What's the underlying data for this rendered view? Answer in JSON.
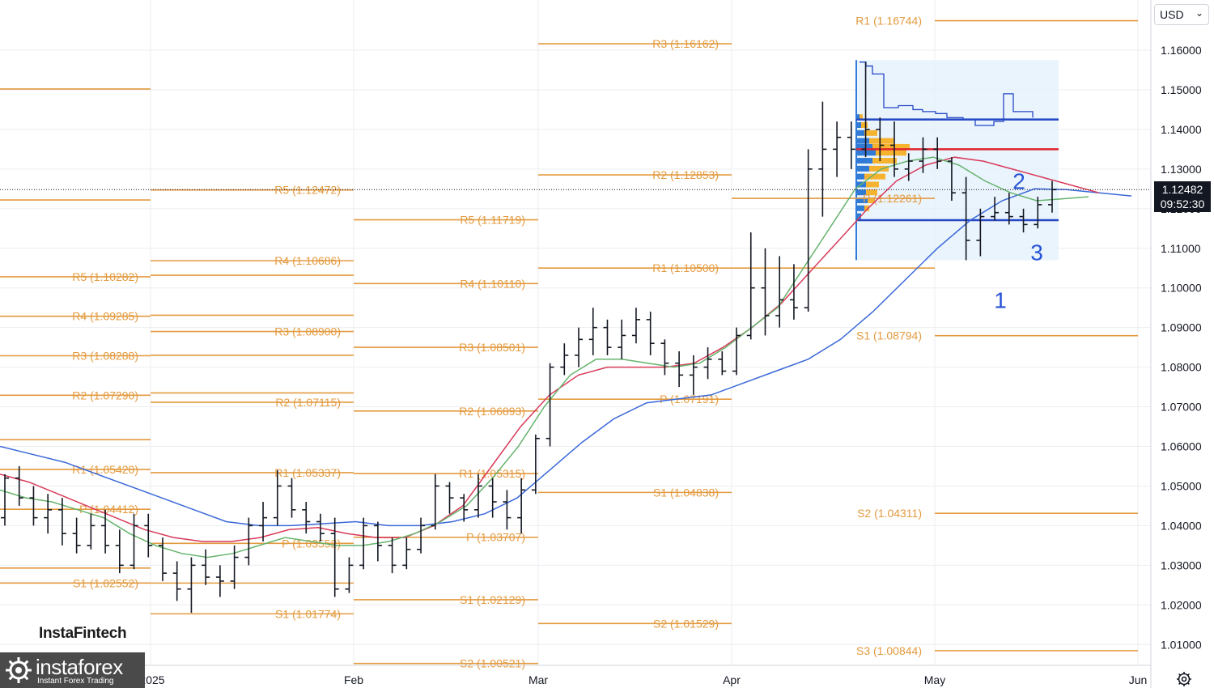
{
  "chart_data": {
    "type": "ohlc",
    "instrument_currency": "USD",
    "x_ticks": [
      "2025",
      "Feb",
      "Mar",
      "Apr",
      "May",
      "Jun"
    ],
    "y_ticks": [
      1.01,
      1.02,
      1.03,
      1.04,
      1.05,
      1.06,
      1.07,
      1.08,
      1.09,
      1.1,
      1.11,
      1.12,
      1.13,
      1.14,
      1.15,
      1.16
    ],
    "y_tick_labels": [
      "1.01000",
      "1.02000",
      "1.03000",
      "1.04000",
      "1.05000",
      "1.06000",
      "1.07000",
      "1.08000",
      "1.09000",
      "1.10000",
      "1.11000",
      "1.12000",
      "1.13000",
      "1.14000",
      "1.15000",
      "1.16000"
    ],
    "ylim": [
      1.0015,
      1.17
    ],
    "last_price": "1.12482",
    "countdown": "09:52:30",
    "pivots": {
      "dec": [
        {
          "label": "",
          "value": 1.1502
        },
        {
          "label": "",
          "value": 1.1222
        },
        {
          "label": "R5 (1.10282)",
          "value": 1.10282
        },
        {
          "label": "R4 (1.09285)",
          "value": 1.09285
        },
        {
          "label": "R3 (1.08288)",
          "value": 1.08288
        },
        {
          "label": "R2 (1.07290)",
          "value": 1.0729
        },
        {
          "label": "",
          "value": 1.0617
        },
        {
          "label": "R1 (1.05420)",
          "value": 1.0542
        },
        {
          "label": "P (1.04412)",
          "value": 1.04412
        },
        {
          "label": "",
          "value": 1.0293
        },
        {
          "label": "S1 (1.02552)",
          "value": 1.02552
        }
      ],
      "jan": [
        {
          "label": "R5 (1.12472)",
          "value": 1.12472
        },
        {
          "label": "R4 (1.10686)",
          "value": 1.10686
        },
        {
          "label": "",
          "value": 1.1032
        },
        {
          "label": "",
          "value": 1.0931
        },
        {
          "label": "R3 (1.08900)",
          "value": 1.089
        },
        {
          "label": "",
          "value": 1.083
        },
        {
          "label": "",
          "value": 1.0735
        },
        {
          "label": "R2 (1.07115)",
          "value": 1.07115
        },
        {
          "label": "R1 (1.05337)",
          "value": 1.05337
        },
        {
          "label": "P (1.03552)",
          "value": 1.03552
        },
        {
          "label": "",
          "value": 1.0255
        },
        {
          "label": "S1 (1.01774)",
          "value": 1.01774
        }
      ],
      "feb": [
        {
          "label": "R5 (1.11719)",
          "value": 1.11719
        },
        {
          "label": "R4 (1.10110)",
          "value": 1.1011
        },
        {
          "label": "R3 (1.08501)",
          "value": 1.08501
        },
        {
          "label": "R2 (1.06893)",
          "value": 1.06893
        },
        {
          "label": "R1 (1.05315)",
          "value": 1.05315
        },
        {
          "label": "P (1.03707)",
          "value": 1.03707
        },
        {
          "label": "S1 (1.02129)",
          "value": 1.02129
        },
        {
          "label": "S2 (1.00521)",
          "value": 1.00521
        }
      ],
      "mar": [
        {
          "label": "R3 (1.16162)",
          "value": 1.16162
        },
        {
          "label": "R2 (1.12853)",
          "value": 1.12853
        },
        {
          "label": "R1 (1.10500)",
          "value": 1.105
        },
        {
          "label": "P (1.07191)",
          "value": 1.07191
        },
        {
          "label": "S1 (1.04838)",
          "value": 1.04838
        },
        {
          "label": "S2 (1.01529)",
          "value": 1.01529
        }
      ],
      "apr": [
        {
          "label": "P (1.12261)",
          "value": 1.12261
        },
        {
          "label": "",
          "value": 1.105
        }
      ],
      "may": [
        {
          "label": "R1 (1.16744)",
          "value": 1.16744
        },
        {
          "label": "S1 (1.08794)",
          "value": 1.08794
        },
        {
          "label": "S2 (1.04311)",
          "value": 1.04311
        },
        {
          "label": "S3 (1.00844)",
          "value": 1.00844
        }
      ]
    },
    "bars": [
      [
        1.042,
        1.053,
        1.04,
        1.052
      ],
      [
        1.052,
        1.055,
        1.045,
        1.047
      ],
      [
        1.047,
        1.05,
        1.04,
        1.042
      ],
      [
        1.042,
        1.048,
        1.038,
        1.044
      ],
      [
        1.044,
        1.047,
        1.035,
        1.038
      ],
      [
        1.038,
        1.042,
        1.033,
        1.035
      ],
      [
        1.035,
        1.043,
        1.034,
        1.04
      ],
      [
        1.04,
        1.044,
        1.033,
        1.035
      ],
      [
        1.035,
        1.039,
        1.028,
        1.03
      ],
      [
        1.03,
        1.043,
        1.029,
        1.04
      ],
      [
        1.04,
        1.043,
        1.032,
        1.035
      ],
      [
        1.035,
        1.037,
        1.026,
        1.028
      ],
      [
        1.028,
        1.031,
        1.021,
        1.024
      ],
      [
        1.024,
        1.032,
        1.018,
        1.03
      ],
      [
        1.03,
        1.034,
        1.025,
        1.027
      ],
      [
        1.027,
        1.03,
        1.022,
        1.026
      ],
      [
        1.026,
        1.035,
        1.024,
        1.032
      ],
      [
        1.032,
        1.042,
        1.03,
        1.04
      ],
      [
        1.04,
        1.046,
        1.036,
        1.042
      ],
      [
        1.042,
        1.054,
        1.04,
        1.05
      ],
      [
        1.05,
        1.052,
        1.042,
        1.044
      ],
      [
        1.044,
        1.046,
        1.038,
        1.041
      ],
      [
        1.041,
        1.043,
        1.036,
        1.038
      ],
      [
        1.038,
        1.042,
        1.022,
        1.024
      ],
      [
        1.024,
        1.032,
        1.023,
        1.03
      ],
      [
        1.03,
        1.042,
        1.029,
        1.04
      ],
      [
        1.04,
        1.041,
        1.031,
        1.035
      ],
      [
        1.035,
        1.037,
        1.028,
        1.03
      ],
      [
        1.03,
        1.037,
        1.029,
        1.034
      ],
      [
        1.034,
        1.042,
        1.033,
        1.04
      ],
      [
        1.04,
        1.053,
        1.039,
        1.05
      ],
      [
        1.05,
        1.051,
        1.043,
        1.047
      ],
      [
        1.047,
        1.048,
        1.041,
        1.044
      ],
      [
        1.044,
        1.053,
        1.042,
        1.05
      ],
      [
        1.05,
        1.052,
        1.042,
        1.046
      ],
      [
        1.046,
        1.049,
        1.039,
        1.042
      ],
      [
        1.042,
        1.052,
        1.038,
        1.049
      ],
      [
        1.049,
        1.063,
        1.048,
        1.062
      ],
      [
        1.062,
        1.081,
        1.06,
        1.08
      ],
      [
        1.08,
        1.086,
        1.078,
        1.083
      ],
      [
        1.083,
        1.09,
        1.08,
        1.087
      ],
      [
        1.087,
        1.095,
        1.083,
        1.09
      ],
      [
        1.09,
        1.092,
        1.083,
        1.085
      ],
      [
        1.085,
        1.092,
        1.082,
        1.088
      ],
      [
        1.088,
        1.095,
        1.086,
        1.092
      ],
      [
        1.092,
        1.094,
        1.083,
        1.086
      ],
      [
        1.086,
        1.087,
        1.078,
        1.081
      ],
      [
        1.081,
        1.084,
        1.075,
        1.078
      ],
      [
        1.078,
        1.083,
        1.073,
        1.08
      ],
      [
        1.08,
        1.085,
        1.077,
        1.082
      ],
      [
        1.082,
        1.084,
        1.078,
        1.079
      ],
      [
        1.079,
        1.09,
        1.078,
        1.088
      ],
      [
        1.088,
        1.114,
        1.087,
        1.1
      ],
      [
        1.1,
        1.11,
        1.088,
        1.093
      ],
      [
        1.093,
        1.108,
        1.09,
        1.097
      ],
      [
        1.097,
        1.106,
        1.092,
        1.095
      ],
      [
        1.095,
        1.135,
        1.094,
        1.13
      ],
      [
        1.13,
        1.147,
        1.118,
        1.135
      ],
      [
        1.135,
        1.142,
        1.128,
        1.138
      ],
      [
        1.138,
        1.142,
        1.13,
        1.135
      ],
      [
        1.135,
        1.157,
        1.133,
        1.14
      ],
      [
        1.14,
        1.143,
        1.132,
        1.136
      ],
      [
        1.136,
        1.142,
        1.128,
        1.13
      ],
      [
        1.13,
        1.134,
        1.127,
        1.132
      ],
      [
        1.132,
        1.138,
        1.129,
        1.135
      ],
      [
        1.135,
        1.138,
        1.13,
        1.132
      ],
      [
        1.132,
        1.133,
        1.122,
        1.124
      ],
      [
        1.124,
        1.128,
        1.107,
        1.112
      ],
      [
        1.112,
        1.12,
        1.108,
        1.118
      ],
      [
        1.118,
        1.123,
        1.117,
        1.119
      ],
      [
        1.119,
        1.124,
        1.116,
        1.118
      ],
      [
        1.118,
        1.12,
        1.114,
        1.116
      ],
      [
        1.116,
        1.123,
        1.115,
        1.121
      ],
      [
        1.121,
        1.127,
        1.119,
        1.1248
      ]
    ],
    "ma_green": [
      1.049,
      1.047,
      1.046,
      1.044,
      1.042,
      1.038,
      1.035,
      1.033,
      1.032,
      1.033,
      1.035,
      1.037,
      1.036,
      1.035,
      1.035,
      1.036,
      1.038,
      1.041,
      1.045,
      1.052,
      1.06,
      1.07,
      1.078,
      1.082,
      1.082,
      1.081,
      1.08,
      1.081,
      1.085,
      1.09,
      1.095,
      1.105,
      1.115,
      1.125,
      1.13,
      1.132,
      1.133,
      1.131,
      1.127,
      1.124,
      1.122,
      1.1225,
      1.123
    ],
    "ma_red": [
      1.053,
      1.051,
      1.048,
      1.045,
      1.042,
      1.039,
      1.037,
      1.036,
      1.036,
      1.037,
      1.039,
      1.0395,
      1.038,
      1.037,
      1.037,
      1.04,
      1.045,
      1.055,
      1.065,
      1.073,
      1.078,
      1.08,
      1.08,
      1.08,
      1.081,
      1.085,
      1.09,
      1.096,
      1.104,
      1.112,
      1.12,
      1.127,
      1.131,
      1.133,
      1.132,
      1.13,
      1.128,
      1.126,
      1.124
    ],
    "ma_blue": [
      1.06,
      1.058,
      1.056,
      1.053,
      1.05,
      1.047,
      1.044,
      1.041,
      1.04,
      1.04,
      1.0405,
      1.041,
      1.04,
      1.04,
      1.041,
      1.043,
      1.047,
      1.054,
      1.061,
      1.067,
      1.071,
      1.072,
      1.073,
      1.076,
      1.079,
      1.082,
      1.087,
      1.094,
      1.102,
      1.11,
      1.117,
      1.122,
      1.125,
      1.1248,
      1.124,
      1.1232
    ]
  },
  "wave_labels": [
    "1",
    "2",
    "3"
  ],
  "ui": {
    "currency": "USD",
    "watermark": "InstaFintech",
    "logo_name": "instaforex",
    "logo_tagline": "Instant Forex Trading"
  },
  "colors": {
    "pivot": "#e39a3f",
    "ma_green": "#67b36d",
    "ma_red": "#d83a5a",
    "ma_blue": "#3a68d8",
    "volume_profile_blue": "#2f7bd6",
    "volume_profile_orange": "#f5b32f",
    "levels_blue": "#2547c4",
    "level_red": "#e0242f",
    "wave_label": "#2753d6"
  }
}
